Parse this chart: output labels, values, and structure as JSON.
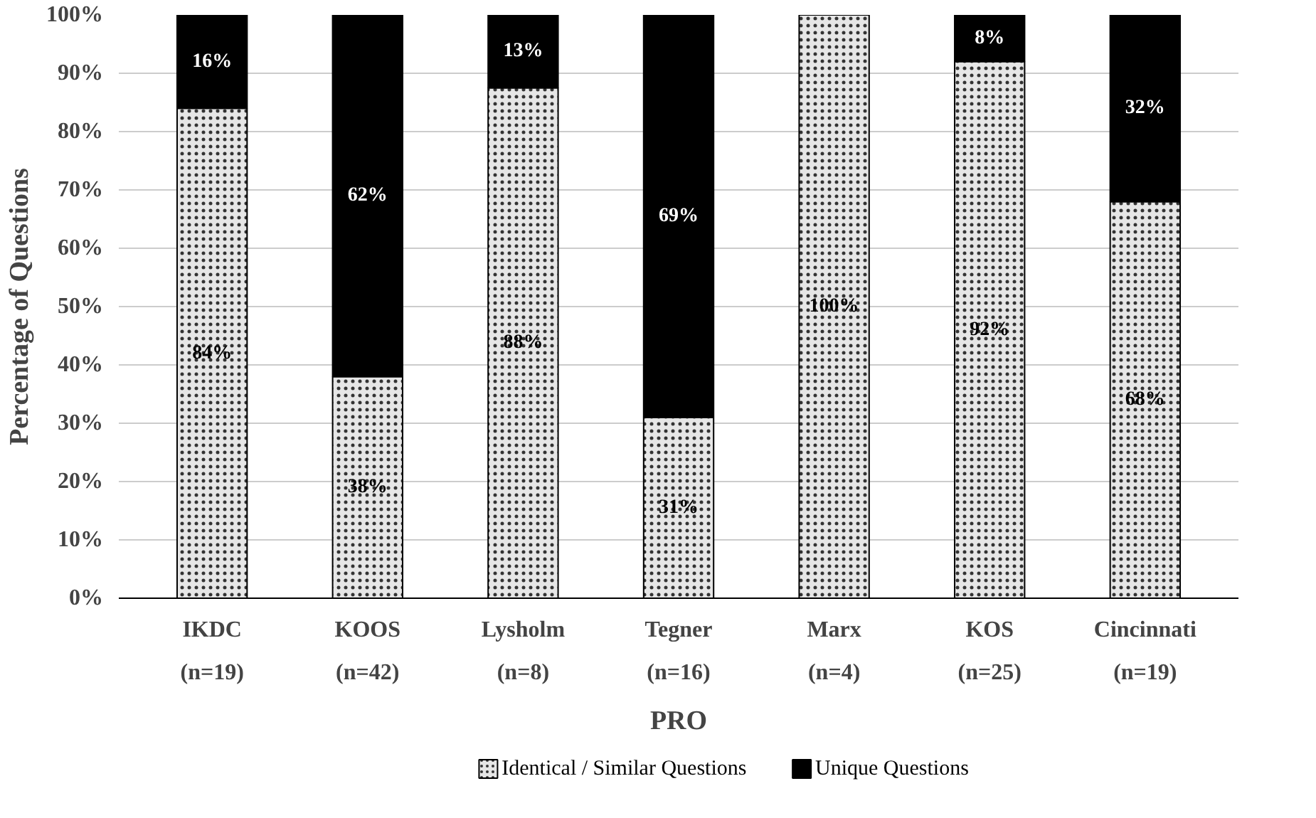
{
  "chart_data": {
    "type": "bar",
    "stacked": true,
    "xlabel": "PRO",
    "ylabel": "Percentage of Questions",
    "categories": [
      "IKDC\n(n=19)",
      "KOOS\n(n=42)",
      "Lysholm\n(n=8)",
      "Tegner\n(n=16)",
      "Marx\n(n=4)",
      "KOS\n(n=25)",
      "Cincinnati\n(n=19)"
    ],
    "series": [
      {
        "name": "Identical / Similar Questions",
        "color": "#e6e6e6",
        "values": [
          84,
          38,
          87.5,
          31,
          100,
          92,
          68
        ],
        "value_labels": [
          "84%",
          "38%",
          "88%",
          "31%",
          "100%",
          "92%",
          "68%"
        ]
      },
      {
        "name": "Unique Questions",
        "color": "#000000",
        "values": [
          16,
          62,
          12.5,
          69,
          0,
          8,
          32
        ],
        "value_labels": [
          "16%",
          "62%",
          "13%",
          "69%",
          null,
          "8%",
          "32%"
        ]
      }
    ],
    "ylim": [
      0,
      100
    ],
    "yticks": [
      {
        "value": 0,
        "label": "0%"
      },
      {
        "value": 10,
        "label": "10%"
      },
      {
        "value": 20,
        "label": "20%"
      },
      {
        "value": 30,
        "label": "30%"
      },
      {
        "value": 40,
        "label": "40%"
      },
      {
        "value": 50,
        "label": "50%"
      },
      {
        "value": 60,
        "label": "60%"
      },
      {
        "value": 70,
        "label": "70%"
      },
      {
        "value": 80,
        "label": "80%"
      },
      {
        "value": 90,
        "label": "90%"
      },
      {
        "value": 100,
        "label": "100%"
      }
    ],
    "grid": "y",
    "legend": "bottom"
  }
}
